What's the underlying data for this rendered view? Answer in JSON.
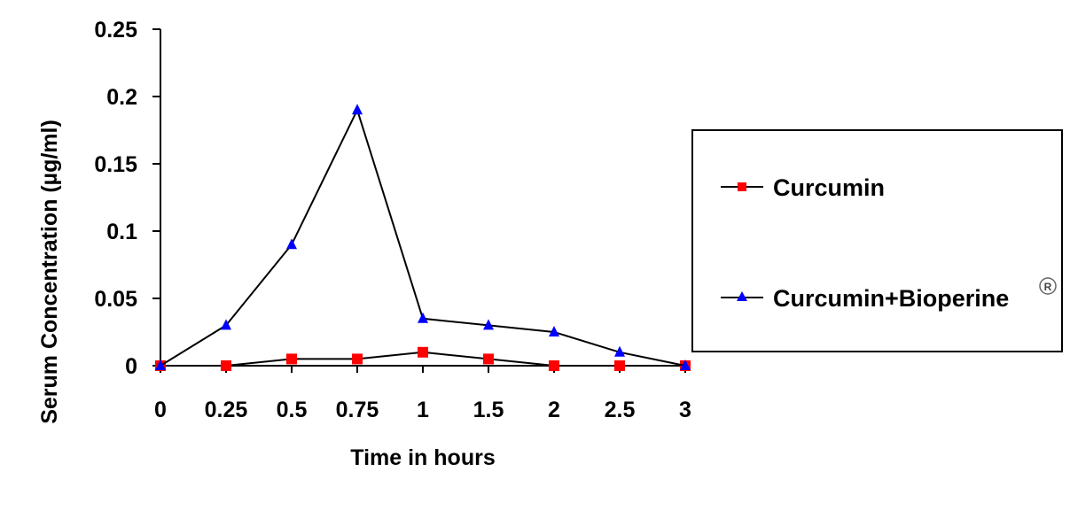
{
  "chart_data": {
    "type": "line",
    "title": "",
    "xlabel": "Time in hours",
    "ylabel": "Serum Concentration (µg/ml)",
    "categories": [
      "0",
      "0.25",
      "0.5",
      "0.75",
      "1",
      "1.5",
      "2",
      "2.5",
      "3"
    ],
    "x": [
      0,
      0.25,
      0.5,
      0.75,
      1,
      1.5,
      2,
      2.5,
      3
    ],
    "ylim": [
      0,
      0.25
    ],
    "yticks": [
      "0",
      "0.05",
      "0.1",
      "0.15",
      "0.2",
      "0.25"
    ],
    "grid": false,
    "legend_position": "right",
    "series": [
      {
        "name": "Curcumin",
        "marker": "square",
        "color": "#ff0000",
        "values": [
          0,
          0,
          0.005,
          0.005,
          0.01,
          0.005,
          0,
          0,
          0
        ]
      },
      {
        "name": "Curcumin+Bioperine",
        "name_suffix": "®",
        "marker": "triangle",
        "color": "#0000ff",
        "values": [
          0,
          0.03,
          0.09,
          0.19,
          0.035,
          0.03,
          0.025,
          0.01,
          0
        ]
      }
    ]
  },
  "legend": {
    "items": [
      {
        "label": "Curcumin"
      },
      {
        "label": "Curcumin+Bioperine",
        "superscript": "R"
      }
    ]
  },
  "axes": {
    "x_title": "Time in hours",
    "y_title": "Serum Concentration (µg/ml)"
  }
}
